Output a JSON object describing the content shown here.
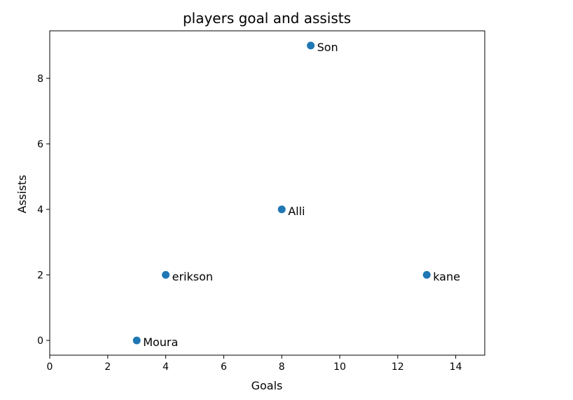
{
  "chart_data": {
    "type": "scatter",
    "title": "players goal and assists",
    "xlabel": "Goals",
    "ylabel": "Assists",
    "xlim": [
      0,
      15
    ],
    "ylim": [
      -0.45,
      9.45
    ],
    "xticks": [
      0,
      2,
      4,
      6,
      8,
      10,
      12,
      14
    ],
    "yticks": [
      0,
      2,
      4,
      6,
      8
    ],
    "grid": false,
    "colors": {
      "point": "#1f77b4"
    },
    "points": [
      {
        "label": "Moura",
        "x": 3,
        "y": 0
      },
      {
        "label": "erikson",
        "x": 4,
        "y": 2
      },
      {
        "label": "Alli",
        "x": 8,
        "y": 4
      },
      {
        "label": "Son",
        "x": 9,
        "y": 9
      },
      {
        "label": "kane",
        "x": 13,
        "y": 2
      }
    ]
  }
}
